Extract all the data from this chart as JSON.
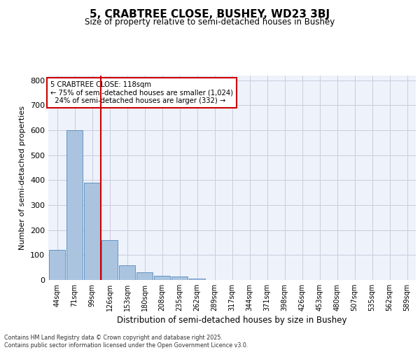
{
  "title1": "5, CRABTREE CLOSE, BUSHEY, WD23 3BJ",
  "title2": "Size of property relative to semi-detached houses in Bushey",
  "xlabel": "Distribution of semi-detached houses by size in Bushey",
  "ylabel": "Number of semi-detached properties",
  "bar_labels": [
    "44sqm",
    "71sqm",
    "99sqm",
    "126sqm",
    "153sqm",
    "180sqm",
    "208sqm",
    "235sqm",
    "262sqm",
    "289sqm",
    "317sqm",
    "344sqm",
    "371sqm",
    "398sqm",
    "426sqm",
    "453sqm",
    "480sqm",
    "507sqm",
    "535sqm",
    "562sqm",
    "589sqm"
  ],
  "bar_values": [
    120,
    600,
    390,
    160,
    58,
    30,
    16,
    13,
    5,
    0,
    0,
    0,
    0,
    0,
    0,
    0,
    0,
    0,
    0,
    0,
    0
  ],
  "bar_color": "#aac4e0",
  "bar_edge_color": "#5588bb",
  "property_size": "118sqm",
  "pct_smaller": 75,
  "n_smaller": "1,024",
  "pct_larger": 24,
  "n_larger": "332",
  "vline_color": "#cc0000",
  "annotation_box_color": "#cc0000",
  "ylim": [
    0,
    820
  ],
  "yticks": [
    0,
    100,
    200,
    300,
    400,
    500,
    600,
    700,
    800
  ],
  "grid_color": "#ccccdd",
  "bg_color": "#eef2fb",
  "footer1": "Contains HM Land Registry data © Crown copyright and database right 2025.",
  "footer2": "Contains public sector information licensed under the Open Government Licence v3.0."
}
